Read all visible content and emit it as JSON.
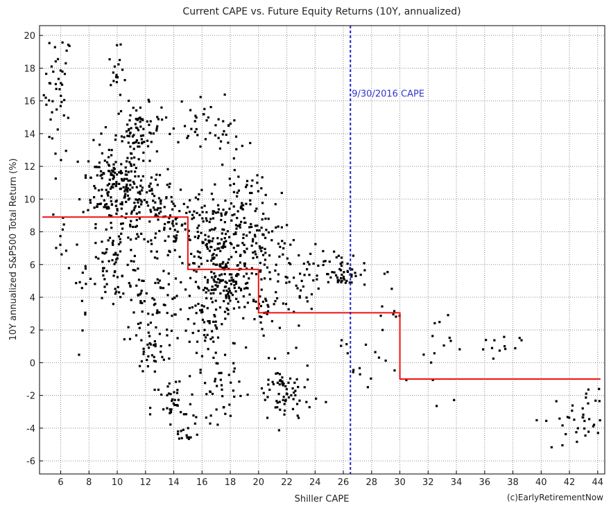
{
  "chart_data": {
    "type": "scatter",
    "title": "Current CAPE vs. Future Equity Returns (10Y, annualized)",
    "xlabel": "Shiller CAPE",
    "ylabel": "10Y annualized S&P500 Total Return (%)",
    "credit": "(c)EarlyRetirementNow",
    "xlim": [
      4.5,
      44.5
    ],
    "ylim": [
      -6.8,
      20.6
    ],
    "xticks": [
      6,
      8,
      10,
      12,
      14,
      16,
      18,
      20,
      22,
      24,
      26,
      28,
      30,
      32,
      34,
      36,
      38,
      40,
      42,
      44
    ],
    "yticks": [
      -6,
      -4,
      -2,
      0,
      2,
      4,
      6,
      8,
      10,
      12,
      14,
      16,
      18,
      20
    ],
    "grid": true,
    "colors": {
      "points": "#000000",
      "step_line": "#ee1111",
      "marker_line": "#2222cc",
      "grid": "#888888"
    },
    "clusters": [
      {
        "cx": 5.8,
        "cy": 16.5,
        "sx": 0.5,
        "sy": 2.0,
        "n": 45
      },
      {
        "cx": 6.3,
        "cy": 7.8,
        "sx": 0.4,
        "sy": 1.0,
        "n": 10
      },
      {
        "cx": 7.3,
        "cy": 3.2,
        "sx": 0.3,
        "sy": 1.8,
        "n": 8
      },
      {
        "cx": 9.5,
        "cy": 11.0,
        "sx": 1.0,
        "sy": 1.2,
        "n": 130
      },
      {
        "cx": 10.0,
        "cy": 17.6,
        "sx": 0.3,
        "sy": 0.8,
        "n": 18
      },
      {
        "cx": 11.5,
        "cy": 14.2,
        "sx": 0.8,
        "sy": 0.8,
        "n": 80
      },
      {
        "cx": 11.5,
        "cy": 9.8,
        "sx": 1.3,
        "sy": 1.3,
        "n": 120
      },
      {
        "cx": 10.0,
        "cy": 6.0,
        "sx": 1.0,
        "sy": 1.2,
        "n": 80
      },
      {
        "cx": 12.5,
        "cy": 3.5,
        "sx": 1.2,
        "sy": 1.0,
        "n": 60
      },
      {
        "cx": 12.3,
        "cy": 0.8,
        "sx": 0.6,
        "sy": 0.6,
        "n": 30
      },
      {
        "cx": 14.0,
        "cy": -2.8,
        "sx": 0.8,
        "sy": 1.0,
        "n": 40
      },
      {
        "cx": 14.8,
        "cy": -4.4,
        "sx": 0.5,
        "sy": 0.3,
        "n": 12
      },
      {
        "cx": 13.8,
        "cy": 8.5,
        "sx": 0.8,
        "sy": 1.3,
        "n": 50
      },
      {
        "cx": 15.5,
        "cy": 14.8,
        "sx": 0.7,
        "sy": 0.8,
        "n": 25
      },
      {
        "cx": 17.0,
        "cy": 7.5,
        "sx": 1.5,
        "sy": 1.6,
        "n": 220
      },
      {
        "cx": 17.5,
        "cy": 4.6,
        "sx": 1.0,
        "sy": 0.8,
        "n": 110
      },
      {
        "cx": 16.5,
        "cy": 2.0,
        "sx": 1.0,
        "sy": 1.0,
        "n": 50
      },
      {
        "cx": 17.3,
        "cy": -1.6,
        "sx": 0.8,
        "sy": 1.0,
        "n": 40
      },
      {
        "cx": 17.8,
        "cy": 13.5,
        "sx": 0.8,
        "sy": 1.2,
        "n": 25
      },
      {
        "cx": 19.0,
        "cy": 10.0,
        "sx": 0.8,
        "sy": 1.0,
        "n": 30
      },
      {
        "cx": 20.5,
        "cy": 7.0,
        "sx": 1.0,
        "sy": 1.3,
        "n": 60
      },
      {
        "cx": 20.5,
        "cy": 3.5,
        "sx": 0.6,
        "sy": 1.3,
        "n": 40
      },
      {
        "cx": 21.8,
        "cy": -2.0,
        "sx": 1.0,
        "sy": 1.0,
        "n": 70
      },
      {
        "cx": 22.8,
        "cy": 4.5,
        "sx": 0.7,
        "sy": 1.0,
        "n": 30
      },
      {
        "cx": 24.5,
        "cy": 6.2,
        "sx": 1.0,
        "sy": 0.4,
        "n": 15
      },
      {
        "cx": 26.0,
        "cy": 5.5,
        "sx": 0.8,
        "sy": 0.4,
        "n": 45
      },
      {
        "cx": 27.5,
        "cy": 1.0,
        "sx": 1.0,
        "sy": 1.8,
        "n": 15
      },
      {
        "cx": 29.5,
        "cy": 2.5,
        "sx": 1.0,
        "sy": 2.0,
        "n": 10
      },
      {
        "cx": 32.5,
        "cy": 2.0,
        "sx": 0.8,
        "sy": 2.0,
        "n": 15
      },
      {
        "cx": 36.5,
        "cy": 0.3,
        "sx": 1.0,
        "sy": 1.0,
        "n": 12
      },
      {
        "cx": 42.5,
        "cy": -3.5,
        "sx": 1.2,
        "sy": 0.9,
        "n": 40
      }
    ],
    "step_line": [
      [
        4.7,
        8.9
      ],
      [
        15,
        8.9
      ],
      [
        15,
        5.7
      ],
      [
        20,
        5.7
      ],
      [
        20,
        3.05
      ],
      [
        30,
        3.05
      ],
      [
        30,
        -1.0
      ],
      [
        44.2,
        -1.0
      ]
    ],
    "vline": {
      "x": 26.5,
      "label": "9/30/2016 CAPE"
    }
  }
}
